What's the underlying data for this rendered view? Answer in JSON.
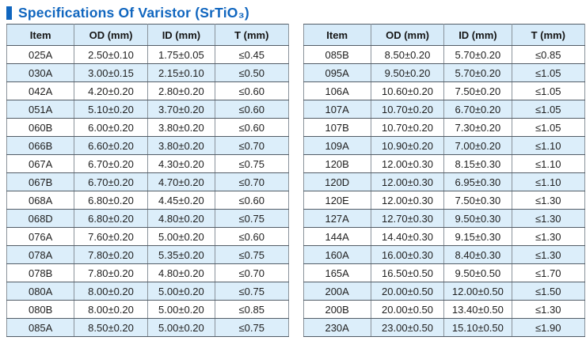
{
  "page": {
    "title": "Specifications Of Varistor (SrTiO₃)"
  },
  "colors": {
    "accent": "#1066BF",
    "header_bg": "#D7EBF9",
    "alt_row_bg": "#DCEEFA",
    "border_horizontal": "#525C66",
    "border_vertical": "#8A939B",
    "text": "#1F1F1F"
  },
  "spec_tables": [
    {
      "columns": [
        "Item",
        "OD (mm)",
        "ID (mm)",
        "T (mm)"
      ],
      "rows": [
        [
          "025A",
          "2.50±0.10",
          "1.75±0.05",
          "≤0.45"
        ],
        [
          "030A",
          "3.00±0.15",
          "2.15±0.10",
          "≤0.50"
        ],
        [
          "042A",
          "4.20±0.20",
          "2.80±0.20",
          "≤0.60"
        ],
        [
          "051A",
          "5.10±0.20",
          "3.70±0.20",
          "≤0.60"
        ],
        [
          "060B",
          "6.00±0.20",
          "3.80±0.20",
          "≤0.60"
        ],
        [
          "066B",
          "6.60±0.20",
          "3.80±0.20",
          "≤0.70"
        ],
        [
          "067A",
          "6.70±0.20",
          "4.30±0.20",
          "≤0.75"
        ],
        [
          "067B",
          "6.70±0.20",
          "4.70±0.20",
          "≤0.70"
        ],
        [
          "068A",
          "6.80±0.20",
          "4.45±0.20",
          "≤0.60"
        ],
        [
          "068D",
          "6.80±0.20",
          "4.80±0.20",
          "≤0.75"
        ],
        [
          "076A",
          "7.60±0.20",
          "5.00±0.20",
          "≤0.60"
        ],
        [
          "078A",
          "7.80±0.20",
          "5.35±0.20",
          "≤0.75"
        ],
        [
          "078B",
          "7.80±0.20",
          "4.80±0.20",
          "≤0.70"
        ],
        [
          "080A",
          "8.00±0.20",
          "5.00±0.20",
          "≤0.75"
        ],
        [
          "080B",
          "8.00±0.20",
          "5.00±0.20",
          "≤0.85"
        ],
        [
          "085A",
          "8.50±0.20",
          "5.00±0.20",
          "≤0.75"
        ]
      ]
    },
    {
      "columns": [
        "Item",
        "OD (mm)",
        "ID (mm)",
        "T (mm)"
      ],
      "rows": [
        [
          "085B",
          "8.50±0.20",
          "5.70±0.20",
          "≤0.85"
        ],
        [
          "095A",
          "9.50±0.20",
          "5.70±0.20",
          "≤1.05"
        ],
        [
          "106A",
          "10.60±0.20",
          "7.50±0.20",
          "≤1.05"
        ],
        [
          "107A",
          "10.70±0.20",
          "6.70±0.20",
          "≤1.05"
        ],
        [
          "107B",
          "10.70±0.20",
          "7.30±0.20",
          "≤1.05"
        ],
        [
          "109A",
          "10.90±0.20",
          "7.00±0.20",
          "≤1.10"
        ],
        [
          "120B",
          "12.00±0.30",
          "8.15±0.30",
          "≤1.10"
        ],
        [
          "120D",
          "12.00±0.30",
          "6.95±0.30",
          "≤1.10"
        ],
        [
          "120E",
          "12.00±0.30",
          "7.50±0.30",
          "≤1.30"
        ],
        [
          "127A",
          "12.70±0.30",
          "9.50±0.30",
          "≤1.30"
        ],
        [
          "144A",
          "14.40±0.30",
          "9.15±0.30",
          "≤1.30"
        ],
        [
          "160A",
          "16.00±0.30",
          "8.40±0.30",
          "≤1.30"
        ],
        [
          "165A",
          "16.50±0.50",
          "9.50±0.50",
          "≤1.70"
        ],
        [
          "200A",
          "20.00±0.50",
          "12.00±0.50",
          "≤1.50"
        ],
        [
          "200B",
          "20.00±0.50",
          "13.40±0.50",
          "≤1.30"
        ],
        [
          "230A",
          "23.00±0.50",
          "15.10±0.50",
          "≤1.90"
        ]
      ]
    }
  ]
}
